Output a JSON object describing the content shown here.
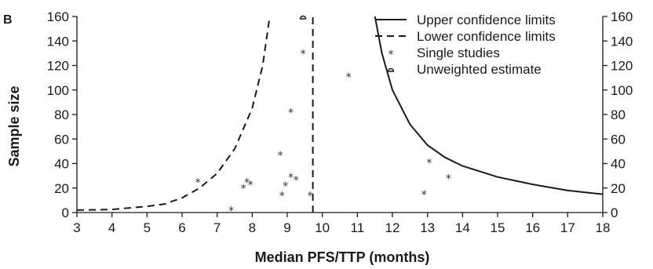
{
  "chart_data": {
    "type": "scatter",
    "panel_label": "B",
    "xlabel": "Median PFS/TTP (months)",
    "ylabel": "Sample size",
    "xlim": [
      3,
      18
    ],
    "ylim": [
      0,
      160
    ],
    "x_ticks": [
      3,
      4,
      5,
      6,
      7,
      8,
      9,
      10,
      11,
      12,
      13,
      14,
      15,
      16,
      17,
      18
    ],
    "y_ticks": [
      0,
      20,
      40,
      60,
      80,
      100,
      120,
      140,
      160
    ],
    "y_right_ticks": [
      0,
      20,
      40,
      60,
      80,
      100,
      120,
      140,
      160
    ],
    "legend": {
      "position": "top-right",
      "entries": [
        {
          "label": "Upper confidence limits",
          "style": "solid"
        },
        {
          "label": "Lower confidence limits",
          "style": "dashed"
        },
        {
          "label": "Single studies",
          "style": "star"
        },
        {
          "label": "Unweighted estimate",
          "style": "open-marker"
        }
      ]
    },
    "estimate": {
      "x": 9.73
    },
    "unweighted_estimate": {
      "x": 9.45,
      "y": 160
    },
    "upper_limit_curve": [
      {
        "x": 11.5,
        "y": 160
      },
      {
        "x": 11.7,
        "y": 130
      },
      {
        "x": 12.0,
        "y": 100
      },
      {
        "x": 12.5,
        "y": 72
      },
      {
        "x": 13.0,
        "y": 55
      },
      {
        "x": 13.5,
        "y": 45
      },
      {
        "x": 14.0,
        "y": 38
      },
      {
        "x": 15.0,
        "y": 29
      },
      {
        "x": 16.0,
        "y": 23
      },
      {
        "x": 17.0,
        "y": 18
      },
      {
        "x": 18.0,
        "y": 15
      }
    ],
    "lower_limit_curve": [
      {
        "x": 3.0,
        "y": 2
      },
      {
        "x": 4.0,
        "y": 2.5
      },
      {
        "x": 5.0,
        "y": 5
      },
      {
        "x": 5.5,
        "y": 7
      },
      {
        "x": 6.0,
        "y": 12
      },
      {
        "x": 6.5,
        "y": 20
      },
      {
        "x": 7.0,
        "y": 32
      },
      {
        "x": 7.5,
        "y": 52
      },
      {
        "x": 8.0,
        "y": 85
      },
      {
        "x": 8.3,
        "y": 120
      },
      {
        "x": 8.5,
        "y": 160
      }
    ],
    "points": [
      {
        "x": 6.45,
        "y": 26
      },
      {
        "x": 7.4,
        "y": 3
      },
      {
        "x": 7.75,
        "y": 21
      },
      {
        "x": 7.85,
        "y": 26
      },
      {
        "x": 7.95,
        "y": 24
      },
      {
        "x": 8.8,
        "y": 48
      },
      {
        "x": 8.85,
        "y": 15
      },
      {
        "x": 8.95,
        "y": 23
      },
      {
        "x": 9.1,
        "y": 30
      },
      {
        "x": 9.1,
        "y": 83
      },
      {
        "x": 9.25,
        "y": 28
      },
      {
        "x": 9.45,
        "y": 131
      },
      {
        "x": 9.65,
        "y": 15
      },
      {
        "x": 10.75,
        "y": 112
      },
      {
        "x": 12.9,
        "y": 16
      },
      {
        "x": 13.05,
        "y": 42
      },
      {
        "x": 13.6,
        "y": 29
      }
    ]
  }
}
